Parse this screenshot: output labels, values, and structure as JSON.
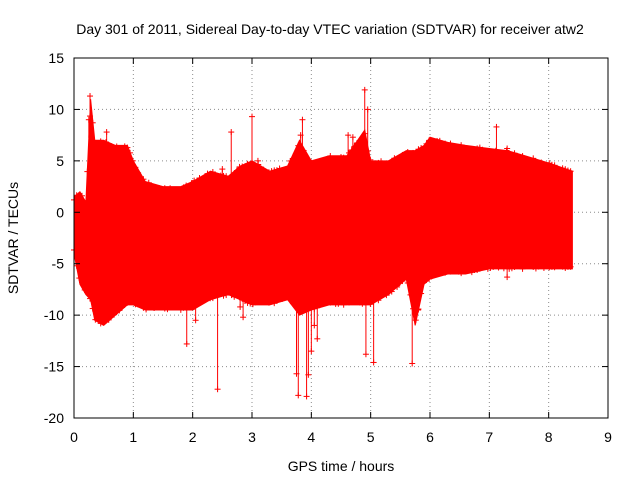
{
  "chart_data": {
    "type": "scatter",
    "title": "Day 301 of 2011, Sidereal Day-to-day VTEC variation (SDTVAR) for receiver atw2",
    "xlabel": "GPS time / hours",
    "ylabel": "SDTVAR / TECUs",
    "xlim": [
      0,
      9
    ],
    "ylim": [
      -20,
      15
    ],
    "x_ticks": [
      0,
      1,
      2,
      3,
      4,
      5,
      6,
      7,
      8,
      9
    ],
    "y_ticks": [
      -20,
      -15,
      -10,
      -5,
      0,
      5,
      10,
      15
    ],
    "grid": true,
    "grid_style": "dotted",
    "series": [
      {
        "name": "SDTVAR",
        "color": "#ff0000",
        "marker": "plus",
        "x_range": [
          0,
          8.4
        ],
        "envelope": {
          "x": [
            0.0,
            0.1,
            0.2,
            0.28,
            0.35,
            0.5,
            0.7,
            0.9,
            1.0,
            1.2,
            1.5,
            1.8,
            2.0,
            2.3,
            2.6,
            2.8,
            3.0,
            3.3,
            3.6,
            3.8,
            4.0,
            4.3,
            4.6,
            4.9,
            5.0,
            5.3,
            5.6,
            5.75,
            5.9,
            6.0,
            6.3,
            6.6,
            7.0,
            7.3,
            7.6,
            8.0,
            8.4
          ],
          "upper": [
            1.5,
            2.0,
            1.0,
            11.0,
            7.0,
            7.0,
            6.5,
            6.5,
            5.0,
            3.0,
            2.5,
            2.5,
            3.0,
            4.0,
            3.5,
            4.5,
            5.0,
            4.0,
            4.5,
            7.0,
            5.0,
            5.5,
            5.5,
            8.0,
            5.0,
            5.0,
            6.0,
            6.0,
            6.5,
            7.3,
            6.8,
            6.5,
            6.2,
            6.0,
            5.5,
            4.8,
            4.0
          ],
          "lower": [
            -4.0,
            -7.0,
            -8.0,
            -8.5,
            -10.5,
            -11.0,
            -10.0,
            -9.0,
            -9.0,
            -9.5,
            -9.5,
            -9.5,
            -9.5,
            -8.5,
            -8.0,
            -8.5,
            -9.0,
            -9.0,
            -8.5,
            -10.0,
            -9.5,
            -9.0,
            -9.0,
            -9.0,
            -9.0,
            -8.0,
            -6.5,
            -11.0,
            -7.0,
            -6.5,
            -6.0,
            -6.0,
            -5.5,
            -5.5,
            -5.5,
            -5.5,
            -5.5
          ]
        },
        "outliers": [
          {
            "x": 0.27,
            "y": 11.3
          },
          {
            "x": 0.25,
            "y": 9.0
          },
          {
            "x": 0.55,
            "y": 7.8
          },
          {
            "x": 1.9,
            "y": -12.8
          },
          {
            "x": 2.42,
            "y": -17.2
          },
          {
            "x": 2.05,
            "y": -10.5
          },
          {
            "x": 2.8,
            "y": -9.2
          },
          {
            "x": 2.5,
            "y": 4.2
          },
          {
            "x": 2.65,
            "y": 7.8
          },
          {
            "x": 2.85,
            "y": -10.2
          },
          {
            "x": 3.0,
            "y": 9.3
          },
          {
            "x": 3.1,
            "y": 5.0
          },
          {
            "x": 3.75,
            "y": -15.7
          },
          {
            "x": 3.78,
            "y": -17.8
          },
          {
            "x": 3.82,
            "y": 7.5
          },
          {
            "x": 3.85,
            "y": 9.0
          },
          {
            "x": 3.92,
            "y": -17.9
          },
          {
            "x": 3.95,
            "y": -15.8
          },
          {
            "x": 4.0,
            "y": -13.5
          },
          {
            "x": 4.1,
            "y": -12.3
          },
          {
            "x": 4.05,
            "y": -11.0
          },
          {
            "x": 4.62,
            "y": 7.5
          },
          {
            "x": 4.7,
            "y": 7.3
          },
          {
            "x": 4.9,
            "y": 11.9
          },
          {
            "x": 4.95,
            "y": 10.0
          },
          {
            "x": 4.92,
            "y": -13.8
          },
          {
            "x": 5.05,
            "y": -14.6
          },
          {
            "x": 5.62,
            "y": -6.5
          },
          {
            "x": 5.7,
            "y": -14.7
          },
          {
            "x": 5.8,
            "y": -9.5
          },
          {
            "x": 7.12,
            "y": 8.3
          },
          {
            "x": 7.3,
            "y": 6.2
          },
          {
            "x": 7.3,
            "y": -6.3
          }
        ]
      }
    ]
  }
}
